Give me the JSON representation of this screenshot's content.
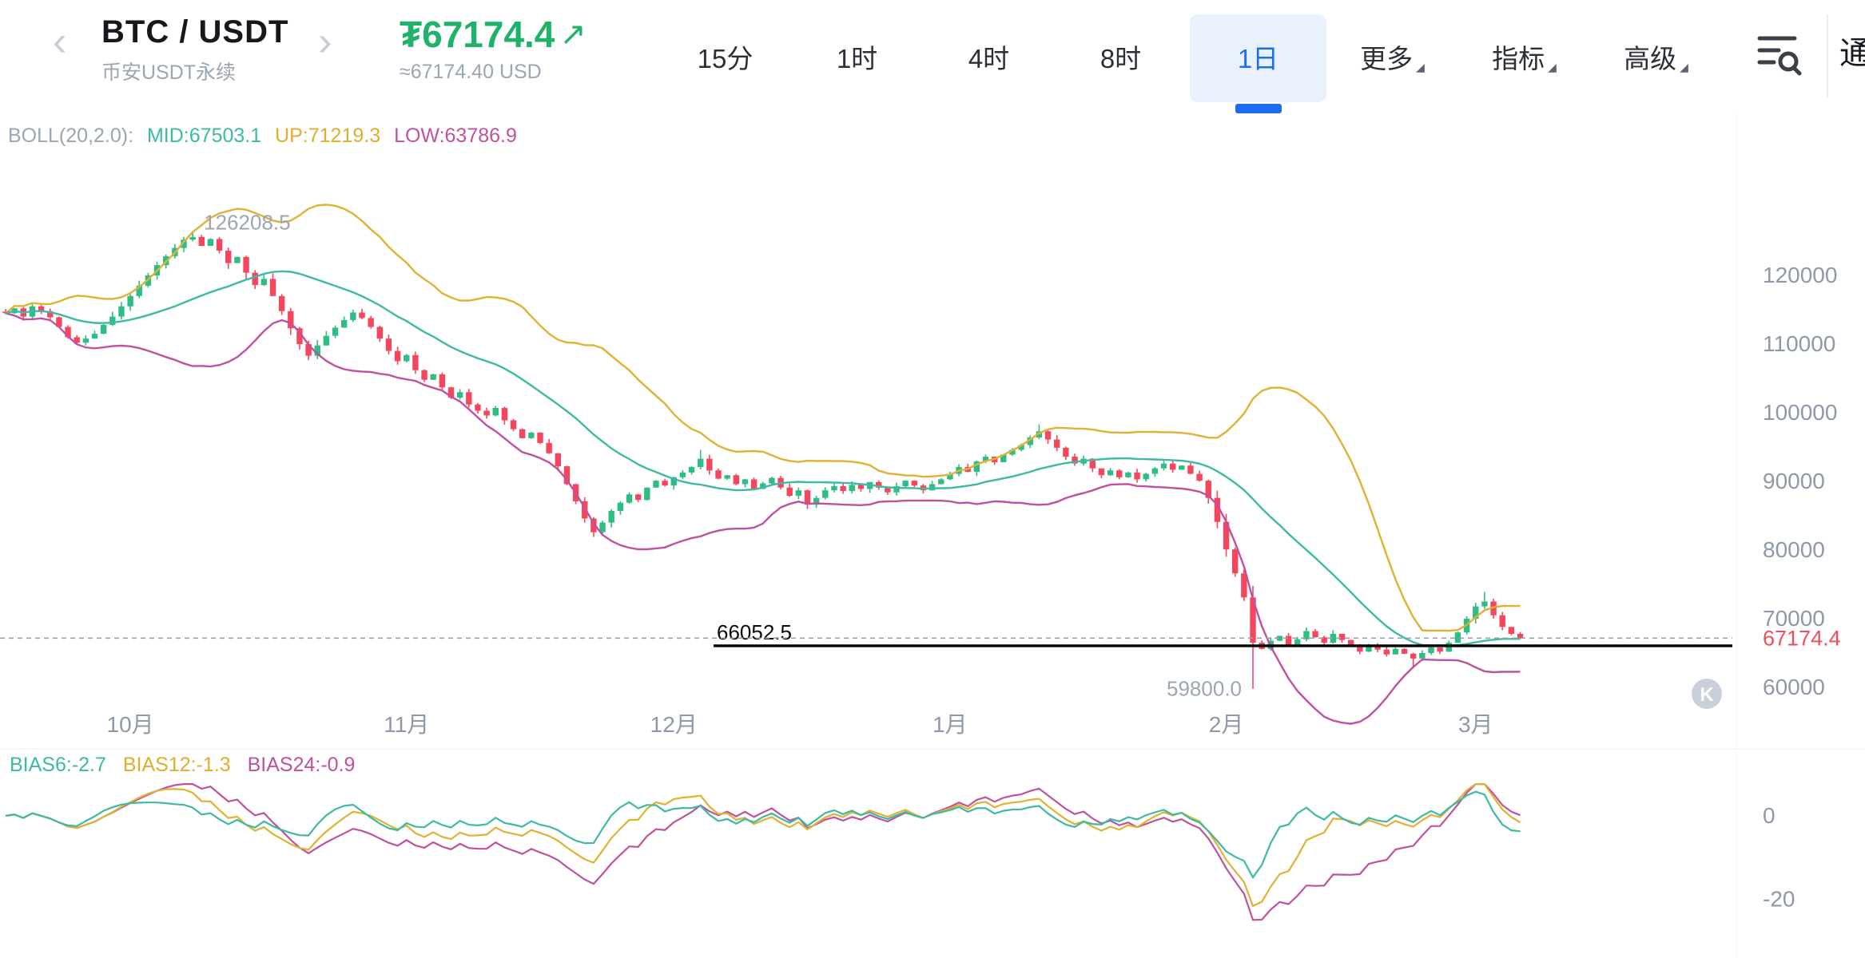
{
  "header": {
    "symbol": "BTC / USDT",
    "subtitle": "币安USDT永续",
    "price_prefix": "₮",
    "price": "67174.4",
    "price_arrow": "↗",
    "price_approx": "≈67174.40 USD",
    "tabs": [
      {
        "label": "15分",
        "active": false,
        "menu": false
      },
      {
        "label": "1时",
        "active": false,
        "menu": false
      },
      {
        "label": "4时",
        "active": false,
        "menu": false
      },
      {
        "label": "8时",
        "active": false,
        "menu": false
      },
      {
        "label": "1日",
        "active": true,
        "menu": false
      },
      {
        "label": "更多",
        "active": false,
        "menu": true
      },
      {
        "label": "指标",
        "active": false,
        "menu": true
      },
      {
        "label": "高级",
        "active": false,
        "menu": true
      }
    ],
    "right_partial": "通"
  },
  "chart_data": {
    "type": "candlestick",
    "interval": "1日",
    "boll_legend": {
      "title": "BOLL(20,2.0):",
      "mid": "MID:67503.1",
      "up": "UP:71219.3",
      "low": "LOW:63786.9"
    },
    "y_ticks": [
      120000,
      110000,
      100000,
      90000,
      80000,
      70000,
      60000
    ],
    "ylim": [
      55800,
      130600
    ],
    "x_ticks": [
      {
        "index": 14,
        "label": "10月"
      },
      {
        "index": 45,
        "label": "11月"
      },
      {
        "index": 75,
        "label": "12月"
      },
      {
        "index": 106,
        "label": "1月"
      },
      {
        "index": 137,
        "label": "2月"
      },
      {
        "index": 165,
        "label": "3月"
      }
    ],
    "closes": [
      114500,
      115200,
      114000,
      115500,
      114800,
      113900,
      112500,
      111000,
      110200,
      110800,
      111500,
      112800,
      114000,
      115500,
      117000,
      118500,
      120000,
      121500,
      122800,
      124000,
      125200,
      125600,
      124300,
      125300,
      123600,
      121800,
      122700,
      120400,
      118600,
      119500,
      117000,
      114800,
      112300,
      110000,
      108300,
      109800,
      111200,
      112400,
      113500,
      114600,
      113800,
      112500,
      110800,
      109000,
      107500,
      108400,
      106200,
      104800,
      105600,
      103700,
      102200,
      103000,
      101200,
      100300,
      99600,
      100700,
      98900,
      97600,
      96300,
      97100,
      95600,
      94100,
      92200,
      89600,
      87100,
      84600,
      82600,
      84000,
      85700,
      86900,
      88100,
      87300,
      89100,
      90100,
      89400,
      90600,
      91300,
      92100,
      93300,
      91600,
      90400,
      90900,
      89600,
      90300,
      88900,
      89700,
      90500,
      89100,
      87900,
      88700,
      86600,
      87600,
      88700,
      89300,
      88600,
      89500,
      88900,
      89900,
      89100,
      88400,
      89300,
      90100,
      89400,
      88700,
      89600,
      90300,
      91100,
      92100,
      91400,
      92900,
      93600,
      92800,
      93900,
      94600,
      95300,
      96400,
      97300,
      96100,
      94900,
      93600,
      92600,
      93300,
      91900,
      90900,
      91600,
      90600,
      91300,
      90300,
      91100,
      91900,
      92600,
      91700,
      92300,
      91100,
      90100,
      87600,
      84100,
      80100,
      76600,
      73100,
      66500,
      65600,
      66800,
      67500,
      66200,
      67000,
      68200,
      67300,
      66500,
      67800,
      66900,
      66000,
      65200,
      66100,
      65500,
      64800,
      65600,
      64900,
      64200,
      65000,
      65800,
      65200,
      66500,
      68000,
      70000,
      71800,
      72500,
      70500,
      68800,
      67800,
      67174.4
    ],
    "wick_overrides": [
      {
        "i": 21,
        "high": 126208.5
      },
      {
        "i": 78,
        "high": 94600
      },
      {
        "i": 116,
        "high": 98300
      },
      {
        "i": 140,
        "low": 59800
      },
      {
        "i": 158,
        "low": 63100
      },
      {
        "i": 166,
        "high": 73900
      }
    ],
    "high_marker": {
      "index": 21,
      "price": 126208.5,
      "label": "126208.5"
    },
    "low_marker": {
      "index": 140,
      "price": 59800.0,
      "label": "59800.0"
    },
    "last_price": {
      "value": 67174.4,
      "label": "67174.4"
    },
    "drawn_line": {
      "price": 66052.5,
      "label": "66052.5"
    },
    "colors": {
      "up": "#2ebd85",
      "down": "#f6465d",
      "boll_mid": "#3db9a4",
      "boll_up": "#e0b133",
      "boll_low": "#c0519f",
      "last_price_label": "#ee4f5c",
      "axis_text": "#8e99a8"
    },
    "watermark": "K",
    "bias": {
      "legend": [
        {
          "label": "BIAS6:-2.7"
        },
        {
          "label": "BIAS12:-1.3"
        },
        {
          "label": "BIAS24:-0.9"
        }
      ],
      "periods": [
        6,
        12,
        24
      ],
      "y_ticks": [
        0,
        -20
      ],
      "ylim": [
        -34,
        8
      ]
    }
  }
}
